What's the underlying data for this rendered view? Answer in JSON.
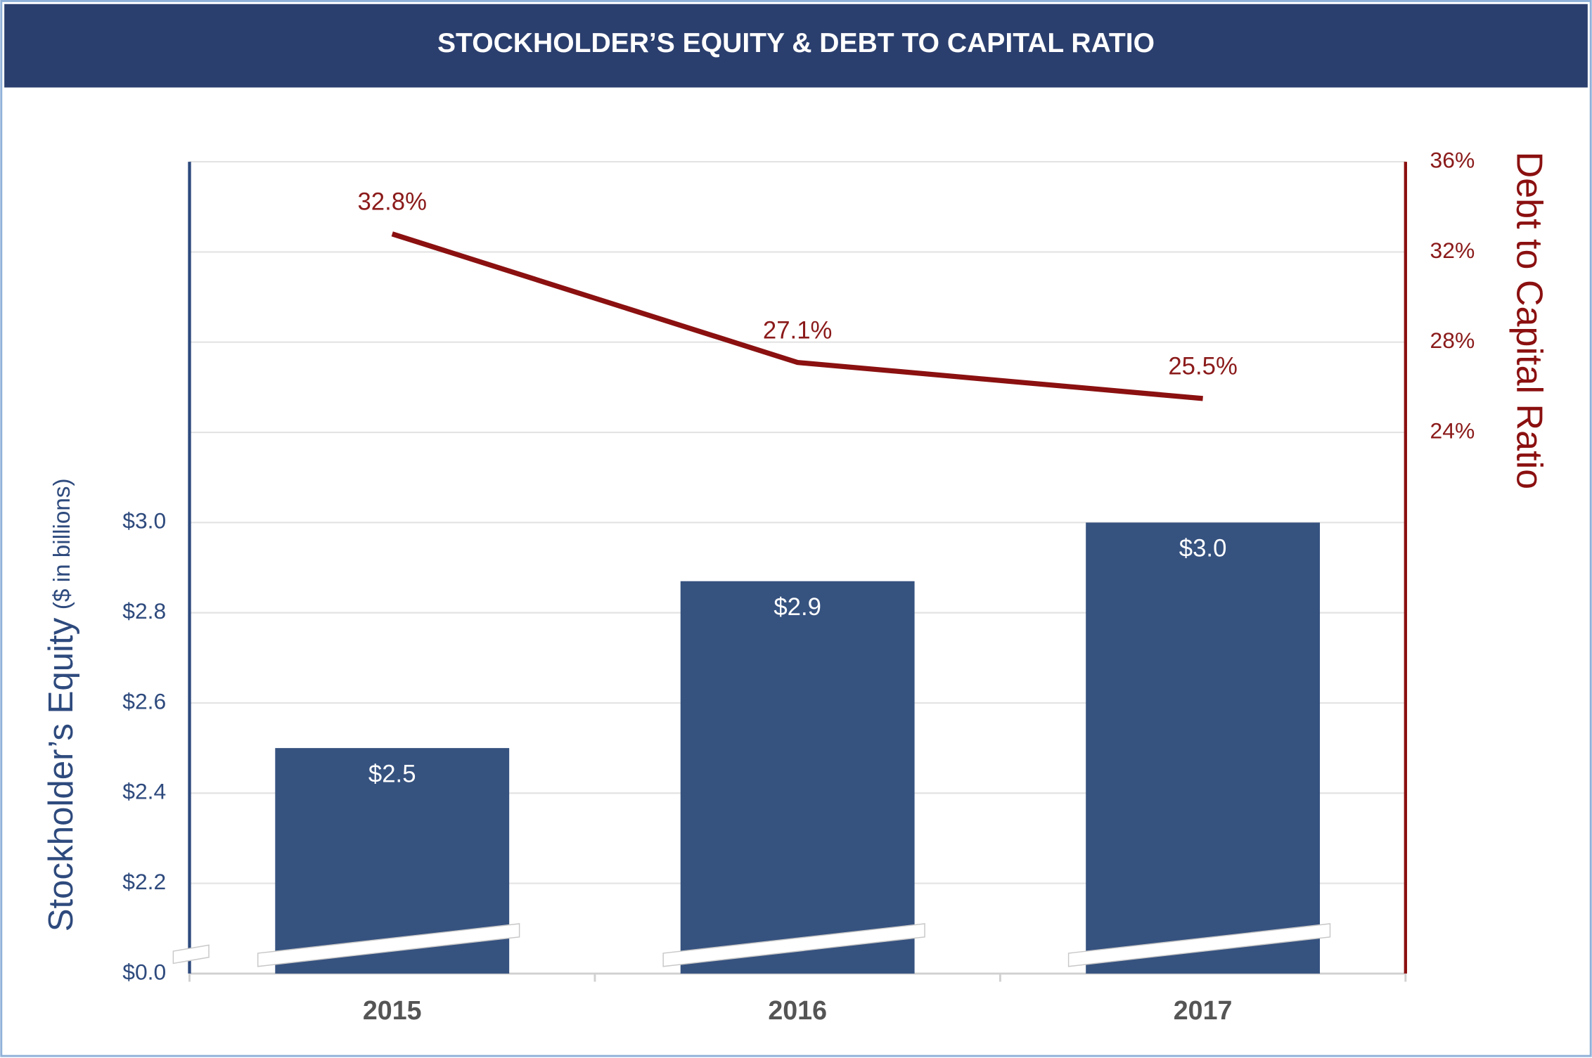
{
  "chart_data": {
    "type": "bar_line",
    "title": "STOCKHOLDER’S EQUITY & DEBT TO CAPITAL RATIO",
    "ylabel": "Stockholder’s Equity",
    "ylabel_unit": "($ in billions)",
    "y2label": "Debt to Capital Ratio",
    "categories": [
      "2015",
      "2016",
      "2017"
    ],
    "series": [
      {
        "name": "Stockholder’s Equity",
        "type": "bar",
        "color": "#36527f",
        "values": [
          2.5,
          2.87,
          3.0
        ],
        "value_labels": [
          "$2.5",
          "$2.9",
          "$3.0"
        ]
      },
      {
        "name": "Debt to Capital Ratio",
        "type": "line",
        "axis": "y2",
        "color": "#8b1010",
        "values": [
          32.8,
          27.1,
          25.5
        ],
        "value_labels": [
          "32.8%",
          "27.1%",
          "25.5%"
        ]
      }
    ],
    "ylim": [
      0,
      3.8
    ],
    "axis_break": true,
    "yticks": [
      {
        "value": 0,
        "label": "$0.0"
      },
      {
        "value": 2.2,
        "label": "$2.2"
      },
      {
        "value": 2.4,
        "label": "$2.4"
      },
      {
        "value": 2.6,
        "label": "$2.6"
      },
      {
        "value": 2.8,
        "label": "$2.8"
      },
      {
        "value": 3.0,
        "label": "$3.0"
      }
    ],
    "y2lim": [
      0,
      36
    ],
    "y2ticks": [
      {
        "value": 24,
        "label": "24%"
      },
      {
        "value": 28,
        "label": "28%"
      },
      {
        "value": 32,
        "label": "32%"
      },
      {
        "value": 36,
        "label": "36%"
      }
    ],
    "grid": true
  }
}
